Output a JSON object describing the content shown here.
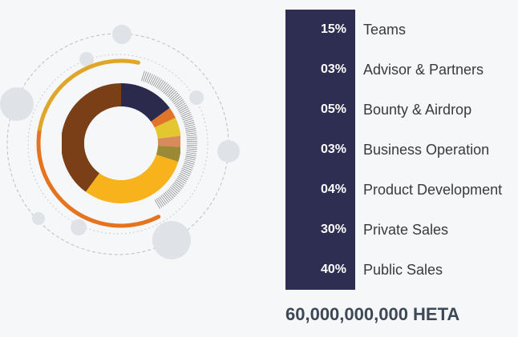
{
  "chart_data": {
    "type": "pie",
    "categories": [
      "Teams",
      "Advisor & Partners",
      "Bounty & Airdrop",
      "Business Operation",
      "Product Development",
      "Private Sales",
      "Public Sales"
    ],
    "labels": [
      "15%",
      "03%",
      "05%",
      "03%",
      "04%",
      "30%",
      "40%"
    ],
    "values": [
      15,
      3,
      5,
      3,
      4,
      30,
      40
    ],
    "colors": [
      "#2b2a4c",
      "#e0752a",
      "#e3c630",
      "#d98a5a",
      "#9b8a35",
      "#f7b21c",
      "#7a3f17"
    ],
    "title": "",
    "xlabel": "",
    "ylabel": ""
  },
  "total_supply": "60,000,000,000 HETA"
}
